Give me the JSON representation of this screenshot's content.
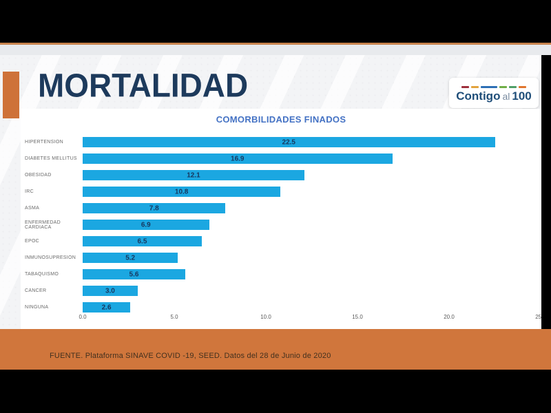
{
  "slide": {
    "title": "MORTALIDAD",
    "footer": "FUENTE. Plataforma SINAVE COVID -19, SEED. Datos del 28 de Junio de 2020"
  },
  "logo": {
    "part1": "Contigo",
    "part2": "al",
    "part3": "100",
    "dash_colors": [
      "#9e2f3c",
      "#e2a33d",
      "#2d6fb5",
      "#6fae46",
      "#4f9f68",
      "#e0762f"
    ]
  },
  "chart_data": {
    "type": "bar",
    "orientation": "horizontal",
    "title": "COMORBILIDADES FINADOS",
    "categories": [
      "HIPERTENSION",
      "DIABETES MELLITUS",
      "OBESIDAD",
      "IRC",
      "ASMA",
      "ENFERMEDAD CARDIACA",
      "EPOC",
      "INMUNOSUPRESION",
      "TABAQUISMO",
      "CANCER",
      "NINGUNA"
    ],
    "values": [
      22.5,
      16.9,
      12.1,
      10.8,
      7.8,
      6.9,
      6.5,
      5.2,
      5.6,
      3.0,
      2.6
    ],
    "xlabel": "",
    "ylabel": "",
    "xlim": [
      0,
      25
    ],
    "x_ticks": [
      "0.0",
      "5.0",
      "10.0",
      "15.0",
      "20.0",
      "25.0"
    ],
    "grid": false,
    "legend": false,
    "bar_color": "#1ba7e1",
    "value_label_color": "#17375e",
    "title_color": "#4472c4"
  },
  "colors": {
    "accent_orange": "#ce7239",
    "footer_orange": "#d0763c",
    "title_navy": "#1d3a5c",
    "frame_black": "#000000"
  }
}
